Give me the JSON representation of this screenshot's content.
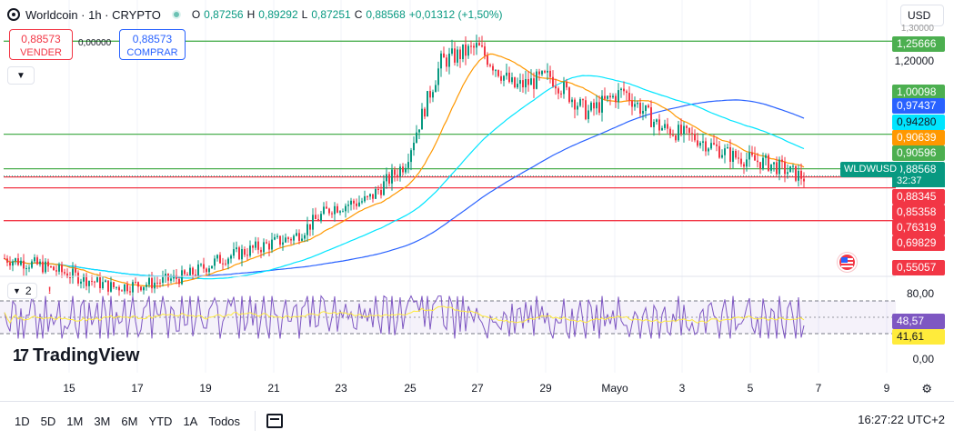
{
  "header": {
    "title": "Worldcoin · 1h · CRYPTO",
    "ohlc": [
      {
        "k": "O",
        "v": "0,87256"
      },
      {
        "k": "H",
        "v": "0,89292"
      },
      {
        "k": "L",
        "v": "0,87251"
      },
      {
        "k": "C",
        "v": "0,88568"
      }
    ],
    "change": "+0,01312 (+1,50%)",
    "currency": "USD"
  },
  "trade": {
    "sell_price": "0,88573",
    "sell_label": "VENDER",
    "spread": "0,00000",
    "buy_price": "0,88573",
    "buy_label": "COMPRAR"
  },
  "price_scale": {
    "ticks": [
      "1,20000",
      "80,00",
      "0,00"
    ],
    "top_partial": "1,30000"
  },
  "price_labels": [
    {
      "text": "1,25666",
      "color": "#4caf50"
    },
    {
      "text": "1,00098",
      "color": "#4caf50"
    },
    {
      "text": "0,97437",
      "color": "#2962ff"
    },
    {
      "text": "0,94280",
      "color": "#00e5ff"
    },
    {
      "text": "0,90639",
      "color": "#ff9800"
    },
    {
      "text": "0,90596",
      "color": "#4caf50"
    },
    {
      "text": "0,88568",
      "color": "#089981"
    },
    {
      "text": "0,88345",
      "color": "#f23645"
    },
    {
      "text": "0,85358",
      "color": "#f23645"
    },
    {
      "text": "0,76319",
      "color": "#f23645"
    },
    {
      "text": "0,69829",
      "color": "#f23645"
    },
    {
      "text": "0,55057",
      "color": "#f23645"
    },
    {
      "text": "48,57",
      "color": "#7e57c2"
    },
    {
      "text": "41,61",
      "color": "#ffeb3b"
    }
  ],
  "symbol_tag": "WLDWUSD",
  "countdown": "32:37",
  "rsi": {
    "label": "2",
    "warning": "!"
  },
  "logo": "TradingView",
  "time_axis": [
    "15",
    "17",
    "19",
    "21",
    "23",
    "25",
    "27",
    "29",
    "Mayo",
    "3",
    "5",
    "7",
    "9"
  ],
  "ranges": [
    "1D",
    "5D",
    "1M",
    "3M",
    "6M",
    "YTD",
    "1A",
    "Todos"
  ],
  "clock": "16:27:22 UTC+2",
  "chart_data": {
    "type": "candlestick",
    "price_levels": {
      "resistance": [
        1.25666,
        1.00098,
        0.90596
      ],
      "support": [
        0.88345,
        0.85358,
        0.76319
      ]
    },
    "moving_averages": [
      {
        "value": 0.97437,
        "color": "#2962ff"
      },
      {
        "value": 0.9428,
        "color": "#00e5ff"
      },
      {
        "value": 0.90639,
        "color": "#ff9800"
      }
    ],
    "last_price": 0.88568,
    "price_path": [
      {
        "x": "14",
        "y": 0.66
      },
      {
        "x": "15",
        "y": 0.64
      },
      {
        "x": "16",
        "y": 0.61
      },
      {
        "x": "17",
        "y": 0.58
      },
      {
        "x": "18",
        "y": 0.59
      },
      {
        "x": "19",
        "y": 0.61
      },
      {
        "x": "20",
        "y": 0.66
      },
      {
        "x": "21",
        "y": 0.69
      },
      {
        "x": "22",
        "y": 0.72
      },
      {
        "x": "23",
        "y": 0.8
      },
      {
        "x": "24",
        "y": 0.82
      },
      {
        "x": "25",
        "y": 0.92
      },
      {
        "x": "26",
        "y": 1.2
      },
      {
        "x": "27",
        "y": 1.24
      },
      {
        "x": "28",
        "y": 1.13
      },
      {
        "x": "29",
        "y": 1.16
      },
      {
        "x": "30",
        "y": 1.06
      },
      {
        "x": "Mayo",
        "y": 1.12
      },
      {
        "x": "2",
        "y": 1.02
      },
      {
        "x": "3",
        "y": 0.99
      },
      {
        "x": "4",
        "y": 0.94
      },
      {
        "x": "5",
        "y": 0.92
      },
      {
        "x": "6",
        "y": 0.88
      }
    ],
    "rsi": {
      "value": 48.57,
      "ma": 41.61,
      "levels": [
        70,
        30
      ],
      "ylim": [
        0,
        80
      ]
    }
  }
}
